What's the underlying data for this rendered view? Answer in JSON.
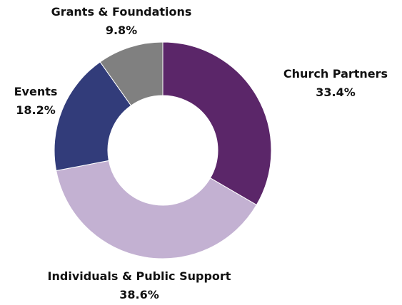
{
  "chart_data": {
    "type": "pie",
    "donut": true,
    "title": "",
    "categories": [
      "Church Partners",
      "Individuals & Public Support",
      "Events",
      "Grants & Foundations"
    ],
    "values": [
      33.4,
      38.6,
      18.2,
      9.8
    ],
    "value_labels": [
      "33.4%",
      "38.6%",
      "18.2%",
      "9.8%"
    ],
    "colors": [
      "#5b2669",
      "#c3b1d2",
      "#323c7a",
      "#808080"
    ],
    "start_angle_deg": 0,
    "direction": "clockwise",
    "legend": "none",
    "background": "#ffffff"
  }
}
